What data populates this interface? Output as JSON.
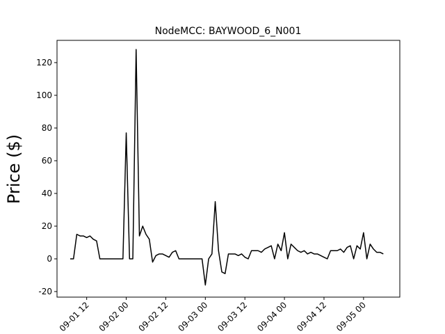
{
  "chart_data": {
    "type": "line",
    "title": "NodeMCC: BAYWOOD_6_N001",
    "y_label": "Price ($)",
    "x": [
      "09-01 07",
      "09-01 08",
      "09-01 09",
      "09-01 10",
      "09-01 11",
      "09-01 12",
      "09-01 13",
      "09-01 14",
      "09-01 15",
      "09-01 16",
      "09-01 17",
      "09-01 18",
      "09-01 19",
      "09-01 20",
      "09-01 21",
      "09-01 22",
      "09-01 23",
      "09-02 00",
      "09-02 01",
      "09-02 02",
      "09-02 03",
      "09-02 04",
      "09-02 05",
      "09-02 06",
      "09-02 07",
      "09-02 08",
      "09-02 09",
      "09-02 10",
      "09-02 11",
      "09-02 12",
      "09-02 13",
      "09-02 14",
      "09-02 15",
      "09-02 16",
      "09-02 17",
      "09-02 18",
      "09-02 19",
      "09-02 20",
      "09-02 21",
      "09-02 22",
      "09-02 23",
      "09-03 00",
      "09-03 01",
      "09-03 02",
      "09-03 03",
      "09-03 04",
      "09-03 05",
      "09-03 06",
      "09-03 07",
      "09-03 08",
      "09-03 09",
      "09-03 10",
      "09-03 11",
      "09-03 12",
      "09-03 13",
      "09-03 14",
      "09-03 15",
      "09-03 16",
      "09-03 17",
      "09-03 18",
      "09-03 19",
      "09-03 20",
      "09-03 21",
      "09-03 22",
      "09-03 23",
      "09-04 00",
      "09-04 01",
      "09-04 02",
      "09-04 03",
      "09-04 04",
      "09-04 05",
      "09-04 06",
      "09-04 07",
      "09-04 08",
      "09-04 09",
      "09-04 10",
      "09-04 11",
      "09-04 12",
      "09-04 13",
      "09-04 14",
      "09-04 15",
      "09-04 16",
      "09-04 17",
      "09-04 18",
      "09-04 19",
      "09-04 20",
      "09-04 21",
      "09-04 22",
      "09-04 23",
      "09-05 00",
      "09-05 01",
      "09-05 02",
      "09-05 03",
      "09-05 04",
      "09-05 05",
      "09-05 06"
    ],
    "series": [
      {
        "name": "BAYWOOD_6_N001",
        "color": "#000000",
        "values": [
          0,
          0,
          15,
          14,
          14,
          13,
          14,
          12,
          11,
          0,
          0,
          0,
          0,
          0,
          0,
          0,
          0,
          77,
          0,
          0,
          128,
          14,
          20,
          15,
          12,
          -2,
          2,
          3,
          3,
          2,
          1,
          4,
          5,
          0,
          0,
          0,
          0,
          0,
          0,
          0,
          0,
          -16,
          0,
          3,
          35,
          5,
          -8,
          -9,
          3,
          3,
          3,
          2,
          3,
          1,
          0,
          5,
          5,
          5,
          4,
          6,
          7,
          8,
          0,
          9,
          5,
          16,
          0,
          9,
          7,
          5,
          4,
          5,
          3,
          4,
          3,
          3,
          2,
          1,
          0,
          5,
          5,
          5,
          6,
          4,
          7,
          8,
          0,
          8,
          6,
          16,
          0,
          9,
          6,
          4,
          4,
          3
        ]
      }
    ],
    "xlim": [
      "09-01 03",
      "09-05 11"
    ],
    "xticks": [
      "09-01 12",
      "09-02 00",
      "09-02 12",
      "09-03 00",
      "09-03 12",
      "09-04 00",
      "09-04 12",
      "09-05 00"
    ],
    "ylim": [
      -23.4,
      133.6
    ],
    "yticks": [
      -20,
      0,
      20,
      40,
      60,
      80,
      100,
      120
    ],
    "grid": false
  }
}
